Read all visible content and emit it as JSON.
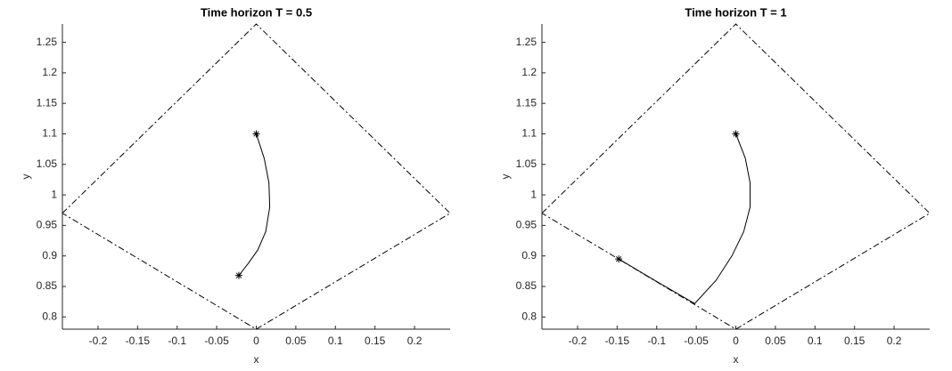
{
  "chart_data": [
    {
      "type": "line",
      "title": "Time horizon T = 0.5",
      "xlabel": "x",
      "ylabel": "y",
      "xlim": [
        -0.245,
        0.245
      ],
      "ylim": [
        0.78,
        1.28
      ],
      "xticks": [
        -0.2,
        -0.15,
        -0.1,
        -0.05,
        0,
        0.05,
        0.1,
        0.15,
        0.2
      ],
      "yticks": [
        0.8,
        0.85,
        0.9,
        0.95,
        1,
        1.05,
        1.1,
        1.15,
        1.2,
        1.25
      ],
      "series": [
        {
          "color": "#000000",
          "linestyle": "dashdot",
          "x": [
            -0.245,
            0,
            0.245,
            0,
            -0.245
          ],
          "values": [
            0.97,
            1.28,
            0.97,
            0.78,
            0.97
          ]
        },
        {
          "color": "#000000",
          "linestyle": "solid",
          "x": [
            0,
            0.01,
            0.016,
            0.017,
            0.012,
            0.002,
            -0.01,
            -0.022
          ],
          "values": [
            1.1,
            1.06,
            1.02,
            0.98,
            0.94,
            0.91,
            0.888,
            0.868
          ]
        },
        {
          "color": "#000000",
          "linestyle": "none",
          "marker": "asterisk",
          "x": [
            0,
            -0.022
          ],
          "values": [
            1.1,
            0.868
          ]
        }
      ]
    },
    {
      "type": "line",
      "title": "Time horizon T = 1",
      "xlabel": "x",
      "ylabel": "y",
      "xlim": [
        -0.245,
        0.245
      ],
      "ylim": [
        0.78,
        1.28
      ],
      "xticks": [
        -0.2,
        -0.15,
        -0.1,
        -0.05,
        0,
        0.05,
        0.1,
        0.15,
        0.2
      ],
      "yticks": [
        0.8,
        0.85,
        0.9,
        0.95,
        1,
        1.05,
        1.1,
        1.15,
        1.2,
        1.25
      ],
      "series": [
        {
          "color": "#000000",
          "linestyle": "dashdot",
          "x": [
            -0.245,
            0,
            0.245,
            0,
            -0.245
          ],
          "values": [
            0.97,
            1.28,
            0.97,
            0.78,
            0.97
          ]
        },
        {
          "color": "#000000",
          "linestyle": "solid",
          "x": [
            0,
            0.012,
            0.018,
            0.018,
            0.01,
            -0.005,
            -0.025,
            -0.052,
            -0.1,
            -0.148
          ],
          "values": [
            1.1,
            1.06,
            1.02,
            0.98,
            0.94,
            0.9,
            0.86,
            0.822,
            0.858,
            0.895
          ]
        },
        {
          "color": "#000000",
          "linestyle": "none",
          "marker": "asterisk",
          "x": [
            0,
            -0.148
          ],
          "values": [
            1.1,
            0.895
          ]
        }
      ]
    }
  ]
}
